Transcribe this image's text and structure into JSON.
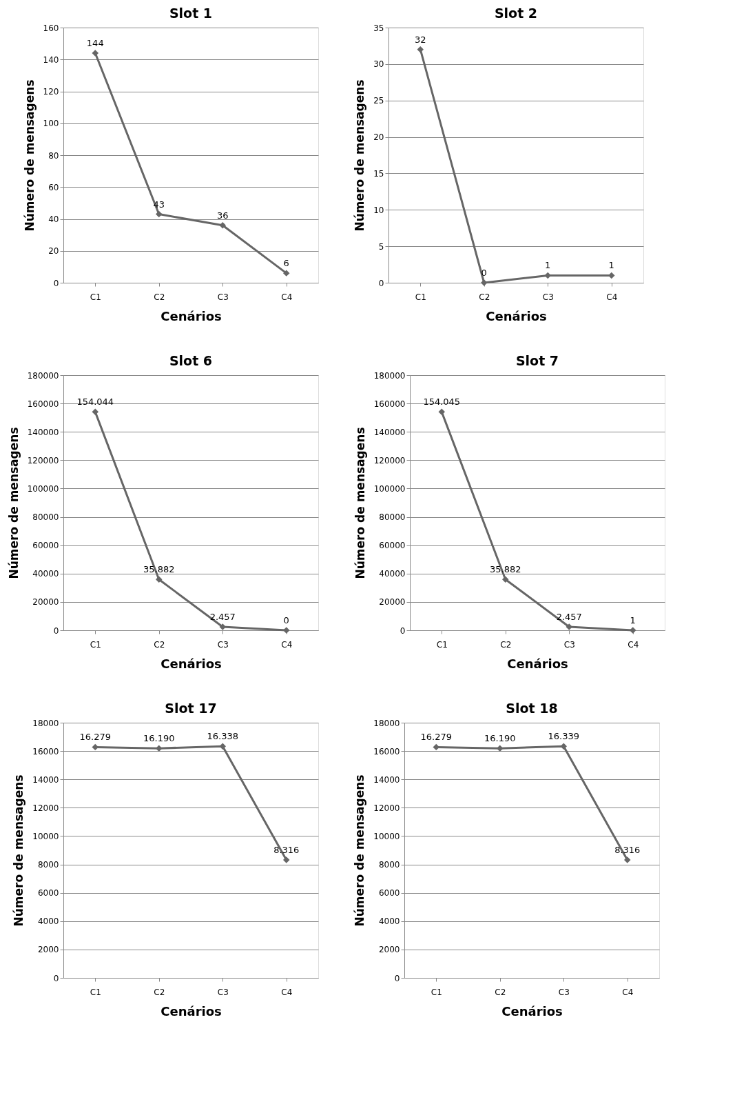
{
  "chart_data": [
    {
      "type": "line",
      "title": "Slot 1",
      "xlabel": "Cenários",
      "ylabel": "Número de mensagens",
      "categories": [
        "C1",
        "C2",
        "C3",
        "C4"
      ],
      "series": [
        {
          "color": "#666666",
          "values": [
            144,
            43,
            36,
            6
          ],
          "value_labels": [
            "144",
            "43",
            "36",
            "6"
          ]
        }
      ],
      "ylim": [
        0,
        160
      ],
      "yticks": [
        0,
        20,
        40,
        60,
        80,
        100,
        120,
        140,
        160
      ],
      "grid": "y",
      "marker": "diamond",
      "line_style": "solid"
    },
    {
      "type": "line",
      "title": "Slot 2",
      "xlabel": "Cenários",
      "ylabel": "Número de mensagens",
      "categories": [
        "C1",
        "C2",
        "C3",
        "C4"
      ],
      "series": [
        {
          "color": "#666666",
          "values": [
            32,
            0,
            1,
            1
          ],
          "value_labels": [
            "32",
            "0",
            "1",
            "1"
          ]
        }
      ],
      "ylim": [
        0,
        35
      ],
      "yticks": [
        0,
        5,
        10,
        15,
        20,
        25,
        30,
        35
      ],
      "grid": "y",
      "marker": "diamond",
      "line_style": "solid"
    },
    {
      "type": "line",
      "title": "Slot 6",
      "xlabel": "Cenários",
      "ylabel": "Número de mensagens",
      "categories": [
        "C1",
        "C2",
        "C3",
        "C4"
      ],
      "series": [
        {
          "color": "#666666",
          "values": [
            154044,
            35882,
            2457,
            0
          ],
          "value_labels": [
            "154.044",
            "35.882",
            "2.457",
            "0"
          ]
        }
      ],
      "ylim": [
        0,
        180000
      ],
      "yticks": [
        0,
        20000,
        40000,
        60000,
        80000,
        100000,
        120000,
        140000,
        160000,
        180000
      ],
      "grid": "y",
      "marker": "diamond",
      "line_style": "solid"
    },
    {
      "type": "line",
      "title": "Slot 7",
      "xlabel": "Cenários",
      "ylabel": "Número de mensagens",
      "categories": [
        "C1",
        "C2",
        "C3",
        "C4"
      ],
      "series": [
        {
          "color": "#666666",
          "values": [
            154045,
            35882,
            2457,
            1
          ],
          "value_labels": [
            "154.045",
            "35.882",
            "2.457",
            "1"
          ]
        }
      ],
      "ylim": [
        0,
        180000
      ],
      "yticks": [
        0,
        20000,
        40000,
        60000,
        80000,
        100000,
        120000,
        140000,
        160000,
        180000
      ],
      "grid": "y",
      "marker": "diamond",
      "line_style": "solid"
    },
    {
      "type": "line",
      "title": "Slot 17",
      "xlabel": "Cenários",
      "ylabel": "Número de mensagens",
      "categories": [
        "C1",
        "C2",
        "C3",
        "C4"
      ],
      "series": [
        {
          "color": "#666666",
          "values": [
            16279,
            16190,
            16338,
            8316
          ],
          "value_labels": [
            "16.279",
            "16.190",
            "16.338",
            "8.316"
          ]
        }
      ],
      "ylim": [
        0,
        18000
      ],
      "yticks": [
        0,
        2000,
        4000,
        6000,
        8000,
        10000,
        12000,
        14000,
        16000,
        18000
      ],
      "grid": "y",
      "marker": "diamond",
      "line_style": "solid"
    },
    {
      "type": "line",
      "title": "Slot 18",
      "xlabel": "Cenários",
      "ylabel": "Número de mensagens",
      "categories": [
        "C1",
        "C2",
        "C3",
        "C4"
      ],
      "series": [
        {
          "color": "#666666",
          "values": [
            16279,
            16190,
            16339,
            8316
          ],
          "value_labels": [
            "16.279",
            "16.190",
            "16.339",
            "8.316"
          ]
        }
      ],
      "ylim": [
        0,
        18000
      ],
      "yticks": [
        0,
        2000,
        4000,
        6000,
        8000,
        10000,
        12000,
        14000,
        16000,
        18000
      ],
      "grid": "y",
      "marker": "diamond",
      "line_style": "solid"
    }
  ]
}
